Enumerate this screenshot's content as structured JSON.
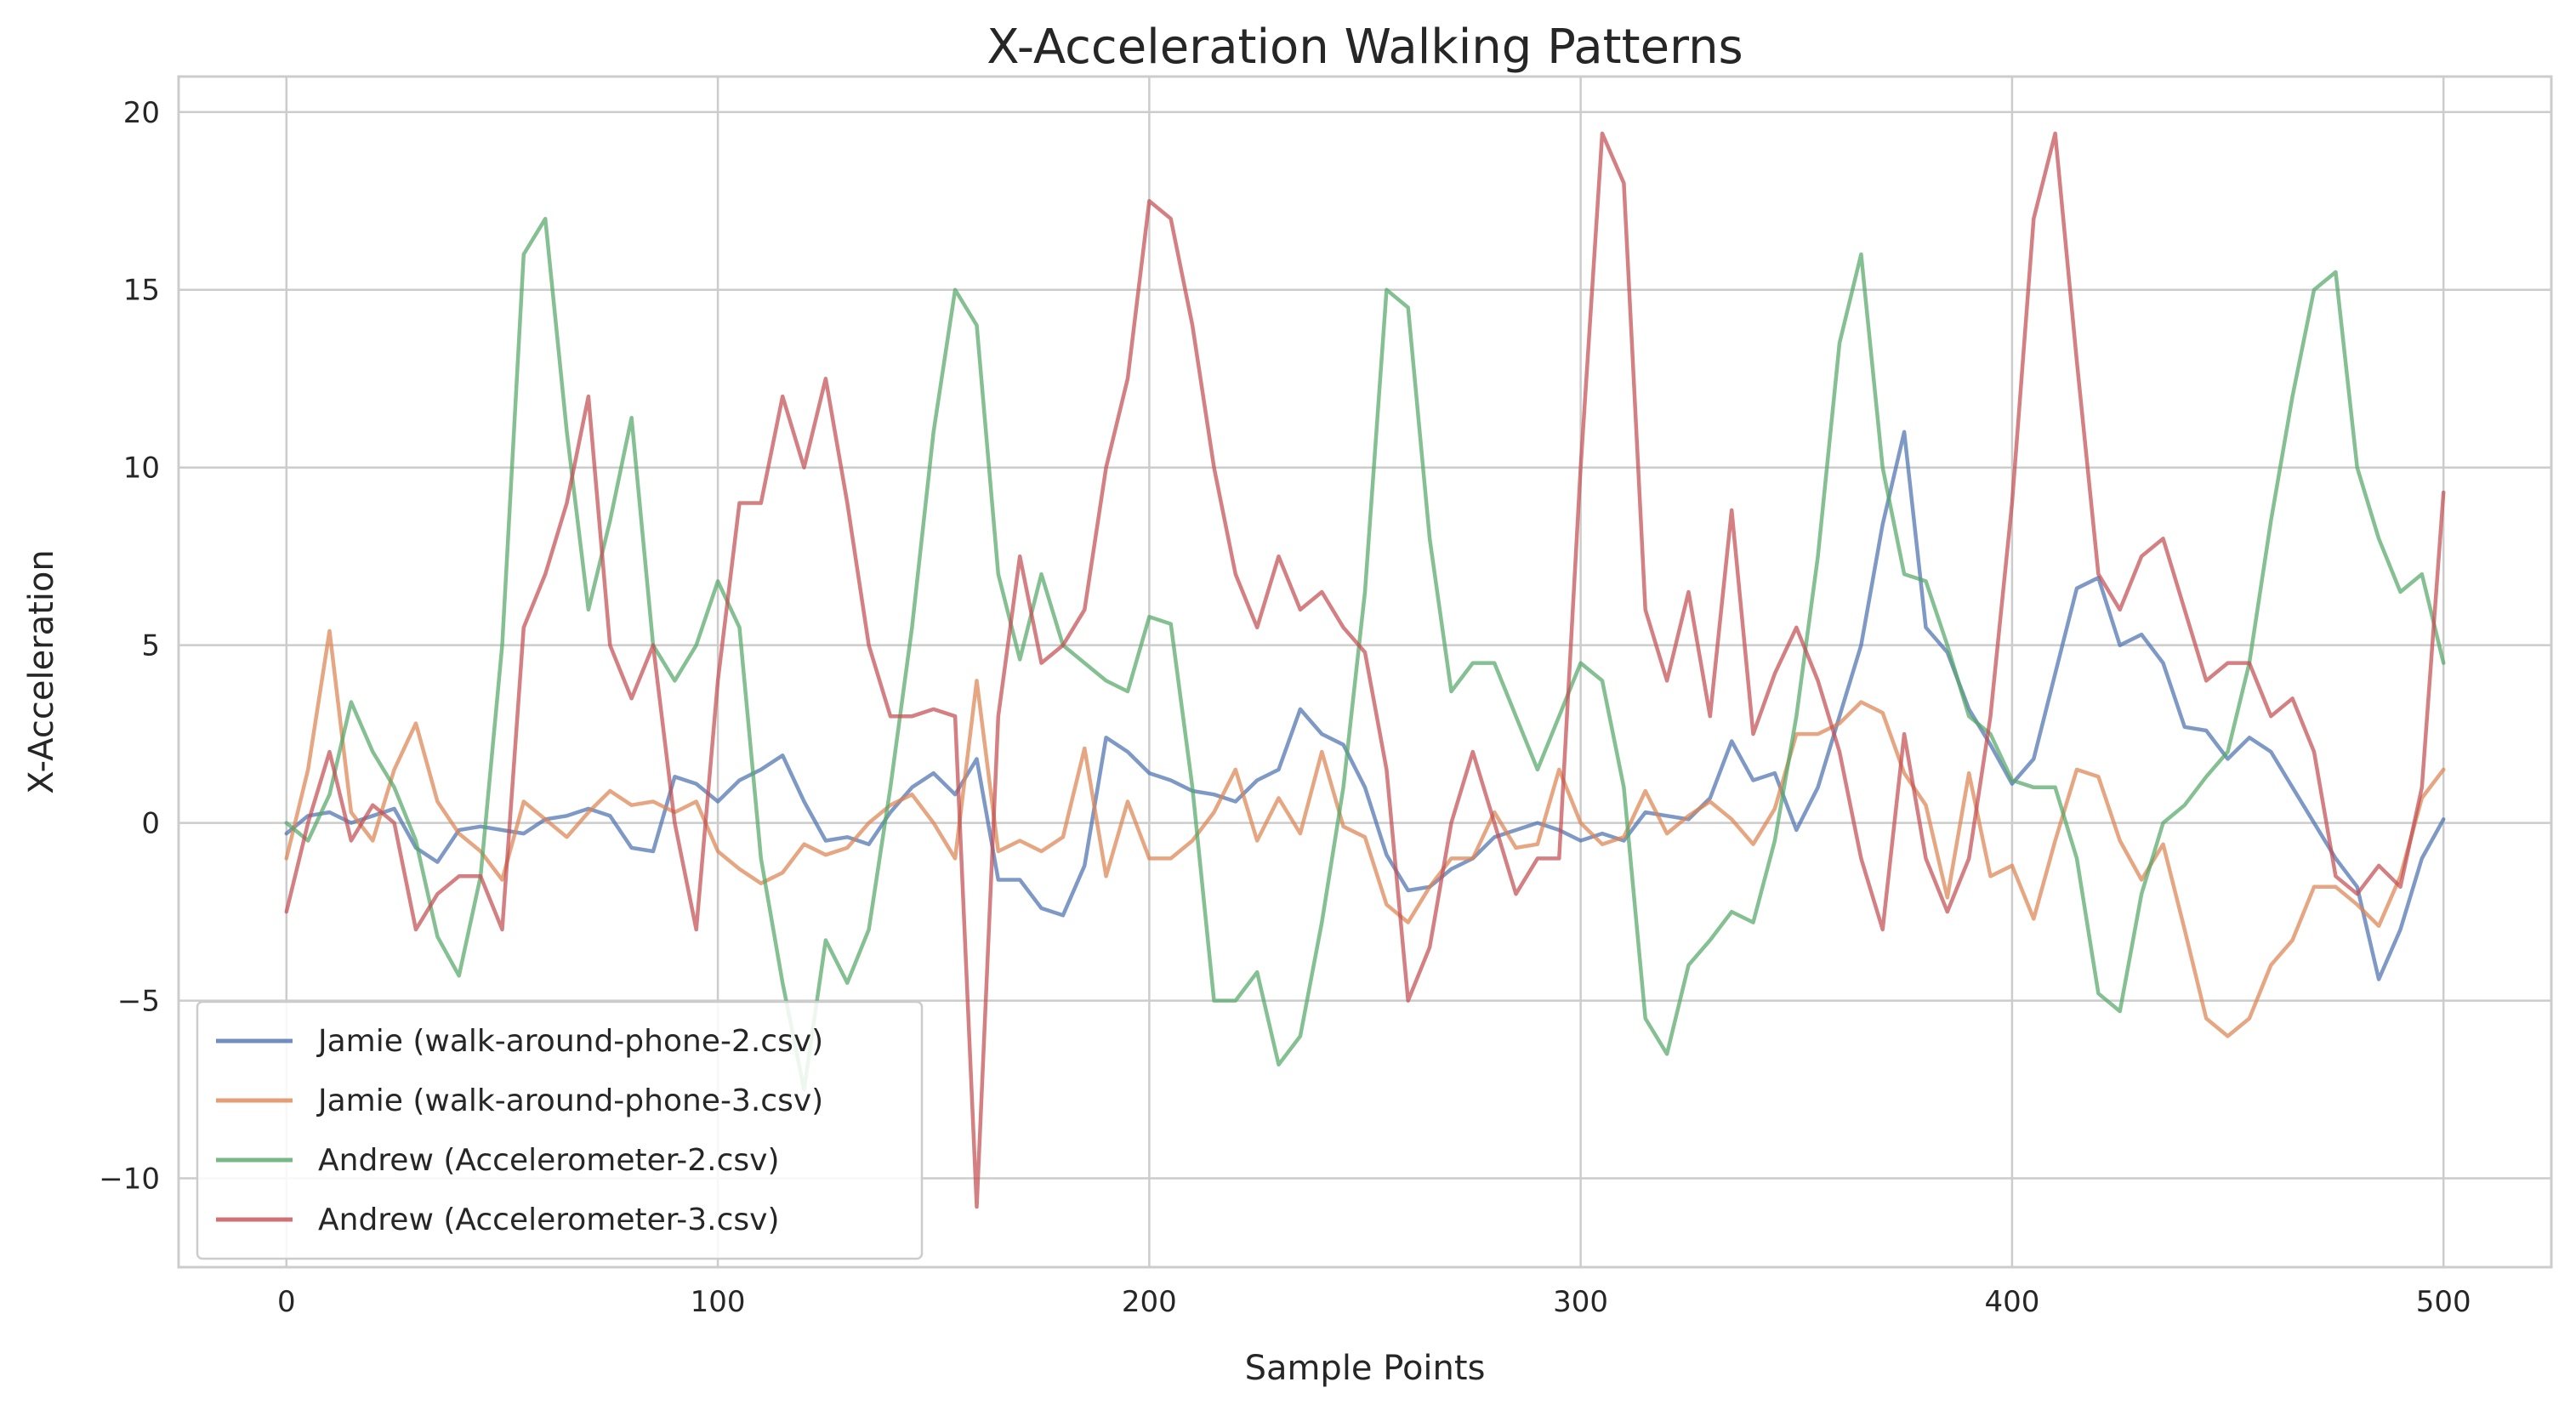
{
  "chart_data": {
    "type": "line",
    "title": "X-Acceleration Walking Patterns",
    "xlabel": "Sample Points",
    "ylabel": "X-Acceleration",
    "xlim": [
      -25,
      525
    ],
    "ylim": [
      -12.5,
      21
    ],
    "xticks": [
      0,
      100,
      200,
      300,
      400,
      500
    ],
    "yticks": [
      -10,
      -5,
      0,
      5,
      10,
      15,
      20
    ],
    "xtick_labels": [
      "0",
      "100",
      "200",
      "300",
      "400",
      "500"
    ],
    "ytick_labels": [
      "−10",
      "−5",
      "0",
      "5",
      "10",
      "15",
      "20"
    ],
    "grid": true,
    "legend_position": "bottom-left",
    "series": [
      {
        "name": "Jamie (walk-around-phone-2.csv)",
        "color": "#4c72b0",
        "x": [
          0,
          5,
          10,
          15,
          20,
          25,
          30,
          35,
          40,
          45,
          50,
          55,
          60,
          65,
          70,
          75,
          80,
          85,
          90,
          95,
          100,
          105,
          110,
          115,
          120,
          125,
          130,
          135,
          140,
          145,
          150,
          155,
          160,
          165,
          170,
          175,
          180,
          185,
          190,
          195,
          200,
          205,
          210,
          215,
          220,
          225,
          230,
          235,
          240,
          245,
          250,
          255,
          260,
          265,
          270,
          275,
          280,
          285,
          290,
          295,
          300,
          305,
          310,
          315,
          320,
          325,
          330,
          335,
          340,
          345,
          350,
          355,
          360,
          365,
          370,
          375,
          380,
          385,
          390,
          395,
          400,
          405,
          410,
          415,
          420,
          425,
          430,
          435,
          440,
          445,
          450,
          455,
          460,
          465,
          470,
          475,
          480,
          485,
          490,
          495,
          500
        ],
        "y": [
          -0.3,
          0.2,
          0.3,
          0.0,
          0.2,
          0.4,
          -0.7,
          -1.1,
          -0.2,
          -0.1,
          -0.2,
          -0.3,
          0.1,
          0.2,
          0.4,
          0.2,
          -0.7,
          -0.8,
          1.3,
          1.1,
          0.6,
          1.2,
          1.5,
          1.9,
          0.6,
          -0.5,
          -0.4,
          -0.6,
          0.3,
          1.0,
          1.4,
          0.8,
          1.8,
          -1.6,
          -1.6,
          -2.4,
          -2.6,
          -1.2,
          2.4,
          2.0,
          1.4,
          1.2,
          0.9,
          0.8,
          0.6,
          1.2,
          1.5,
          3.2,
          2.5,
          2.2,
          1.0,
          -0.9,
          -1.9,
          -1.8,
          -1.3,
          -1.0,
          -0.4,
          -0.2,
          0.0,
          -0.2,
          -0.5,
          -0.3,
          -0.5,
          0.3,
          0.2,
          0.1,
          0.7,
          2.3,
          1.2,
          1.4,
          -0.2,
          1.0,
          3.0,
          5.0,
          8.4,
          11.0,
          5.5,
          4.8,
          3.2,
          2.2,
          1.1,
          1.8,
          4.2,
          6.6,
          6.9,
          5.0,
          5.3,
          4.5,
          2.7,
          2.6,
          1.8,
          2.4,
          2.0,
          1.0,
          0.0,
          -1.0,
          -1.8,
          -4.4,
          -3.0,
          -1.0,
          0.1
        ]
      },
      {
        "name": "Jamie (walk-around-phone-3.csv)",
        "color": "#dd8452",
        "x": [
          0,
          5,
          10,
          15,
          20,
          25,
          30,
          35,
          40,
          45,
          50,
          55,
          60,
          65,
          70,
          75,
          80,
          85,
          90,
          95,
          100,
          105,
          110,
          115,
          120,
          125,
          130,
          135,
          140,
          145,
          150,
          155,
          160,
          165,
          170,
          175,
          180,
          185,
          190,
          195,
          200,
          205,
          210,
          215,
          220,
          225,
          230,
          235,
          240,
          245,
          250,
          255,
          260,
          265,
          270,
          275,
          280,
          285,
          290,
          295,
          300,
          305,
          310,
          315,
          320,
          325,
          330,
          335,
          340,
          345,
          350,
          355,
          360,
          365,
          370,
          375,
          380,
          385,
          390,
          395,
          400,
          405,
          410,
          415,
          420,
          425,
          430,
          435,
          440,
          445,
          450,
          455,
          460,
          465,
          470,
          475,
          480,
          485,
          490,
          495,
          500
        ],
        "y": [
          -1.0,
          1.5,
          5.4,
          0.3,
          -0.5,
          1.5,
          2.8,
          0.6,
          -0.3,
          -0.8,
          -1.6,
          0.6,
          0.1,
          -0.4,
          0.3,
          0.9,
          0.5,
          0.6,
          0.3,
          0.6,
          -0.8,
          -1.3,
          -1.7,
          -1.4,
          -0.6,
          -0.9,
          -0.7,
          0.0,
          0.5,
          0.8,
          0.0,
          -1.0,
          4.0,
          -0.8,
          -0.5,
          -0.8,
          -0.4,
          2.1,
          -1.5,
          0.6,
          -1.0,
          -1.0,
          -0.5,
          0.3,
          1.5,
          -0.5,
          0.7,
          -0.3,
          2.0,
          -0.1,
          -0.4,
          -2.3,
          -2.8,
          -1.8,
          -1.0,
          -1.0,
          0.3,
          -0.7,
          -0.6,
          1.5,
          0.0,
          -0.6,
          -0.4,
          0.9,
          -0.3,
          0.2,
          0.6,
          0.1,
          -0.6,
          0.4,
          2.5,
          2.5,
          2.8,
          3.4,
          3.1,
          1.4,
          0.5,
          -2.1,
          1.4,
          -1.5,
          -1.2,
          -2.7,
          -0.5,
          1.5,
          1.3,
          -0.5,
          -1.6,
          -0.6,
          -3.0,
          -5.5,
          -6.0,
          -5.5,
          -4.0,
          -3.3,
          -1.8,
          -1.8,
          -2.3,
          -2.9,
          -1.5,
          0.7,
          1.5
        ]
      },
      {
        "name": "Andrew (Accelerometer-2.csv)",
        "color": "#55a868",
        "x": [
          0,
          5,
          10,
          15,
          20,
          25,
          30,
          35,
          40,
          45,
          50,
          55,
          60,
          65,
          70,
          75,
          80,
          85,
          90,
          95,
          100,
          105,
          110,
          115,
          120,
          125,
          130,
          135,
          140,
          145,
          150,
          155,
          160,
          165,
          170,
          175,
          180,
          185,
          190,
          195,
          200,
          205,
          210,
          215,
          220,
          225,
          230,
          235,
          240,
          245,
          250,
          255,
          260,
          265,
          270,
          275,
          280,
          285,
          290,
          295,
          300,
          305,
          310,
          315,
          320,
          325,
          330,
          335,
          340,
          345,
          350,
          355,
          360,
          365,
          370,
          375,
          380,
          385,
          390,
          395,
          400,
          405,
          410,
          415,
          420,
          425,
          430,
          435,
          440,
          445,
          450,
          455,
          460,
          465,
          470,
          475,
          480,
          485,
          490,
          495,
          500
        ],
        "y": [
          0.0,
          -0.5,
          0.8,
          3.4,
          2.0,
          1.0,
          -0.5,
          -3.2,
          -4.3,
          -1.5,
          5.0,
          16.0,
          17.0,
          11.0,
          6.0,
          8.5,
          11.4,
          5.0,
          4.0,
          5.0,
          6.8,
          5.5,
          -1.0,
          -4.5,
          -7.5,
          -3.3,
          -4.5,
          -3.0,
          1.0,
          5.5,
          11.0,
          15.0,
          14.0,
          7.0,
          4.6,
          7.0,
          5.0,
          4.5,
          4.0,
          3.7,
          5.8,
          5.6,
          1.0,
          -5.0,
          -5.0,
          -4.2,
          -6.8,
          -6.0,
          -2.8,
          1.0,
          6.5,
          15.0,
          14.5,
          8.0,
          3.7,
          4.5,
          4.5,
          3.0,
          1.5,
          3.0,
          4.5,
          4.0,
          1.0,
          -5.5,
          -6.5,
          -4.0,
          -3.3,
          -2.5,
          -2.8,
          -0.5,
          3.0,
          7.5,
          13.5,
          16.0,
          10.0,
          7.0,
          6.8,
          5.0,
          3.0,
          2.5,
          1.2,
          1.0,
          1.0,
          -1.0,
          -4.8,
          -5.3,
          -2.0,
          0.0,
          0.5,
          1.3,
          2.0,
          4.5,
          8.5,
          12.0,
          15.0,
          15.5,
          10.0,
          8.0,
          6.5,
          7.0,
          4.5
        ]
      },
      {
        "name": "Andrew (Accelerometer-3.csv)",
        "color": "#c44e52",
        "x": [
          0,
          5,
          10,
          15,
          20,
          25,
          30,
          35,
          40,
          45,
          50,
          55,
          60,
          65,
          70,
          75,
          80,
          85,
          90,
          95,
          100,
          105,
          110,
          115,
          120,
          125,
          130,
          135,
          140,
          145,
          150,
          155,
          160,
          165,
          170,
          175,
          180,
          185,
          190,
          195,
          200,
          205,
          210,
          215,
          220,
          225,
          230,
          235,
          240,
          245,
          250,
          255,
          260,
          265,
          270,
          275,
          280,
          285,
          290,
          295,
          300,
          305,
          310,
          315,
          320,
          325,
          330,
          335,
          340,
          345,
          350,
          355,
          360,
          365,
          370,
          375,
          380,
          385,
          390,
          395,
          400,
          405,
          410,
          415,
          420,
          425,
          430,
          435,
          440,
          445,
          450,
          455,
          460,
          465,
          470,
          475,
          480,
          485,
          490,
          495,
          500
        ],
        "y": [
          -2.5,
          0.0,
          2.0,
          -0.5,
          0.5,
          0.0,
          -3.0,
          -2.0,
          -1.5,
          -1.5,
          -3.0,
          5.5,
          7.0,
          9.0,
          12.0,
          5.0,
          3.5,
          5.0,
          0.0,
          -3.0,
          4.0,
          9.0,
          9.0,
          12.0,
          10.0,
          12.5,
          9.0,
          5.0,
          3.0,
          3.0,
          3.2,
          3.0,
          -10.8,
          3.0,
          7.5,
          4.5,
          5.0,
          6.0,
          10.0,
          12.5,
          17.5,
          17.0,
          14.0,
          10.0,
          7.0,
          5.5,
          7.5,
          6.0,
          6.5,
          5.5,
          4.8,
          1.5,
          -5.0,
          -3.5,
          0.0,
          2.0,
          0.0,
          -2.0,
          -1.0,
          -1.0,
          10.0,
          19.4,
          18.0,
          6.0,
          4.0,
          6.5,
          3.0,
          8.8,
          2.5,
          4.2,
          5.5,
          4.0,
          2.0,
          -1.0,
          -3.0,
          2.5,
          -1.0,
          -2.5,
          -1.0,
          3.0,
          9.0,
          17.0,
          19.4,
          13.0,
          7.0,
          6.0,
          7.5,
          8.0,
          6.0,
          4.0,
          4.5,
          4.5,
          3.0,
          3.5,
          2.0,
          -1.5,
          -2.0,
          -1.2,
          -1.8,
          1.0,
          9.3
        ]
      }
    ]
  }
}
